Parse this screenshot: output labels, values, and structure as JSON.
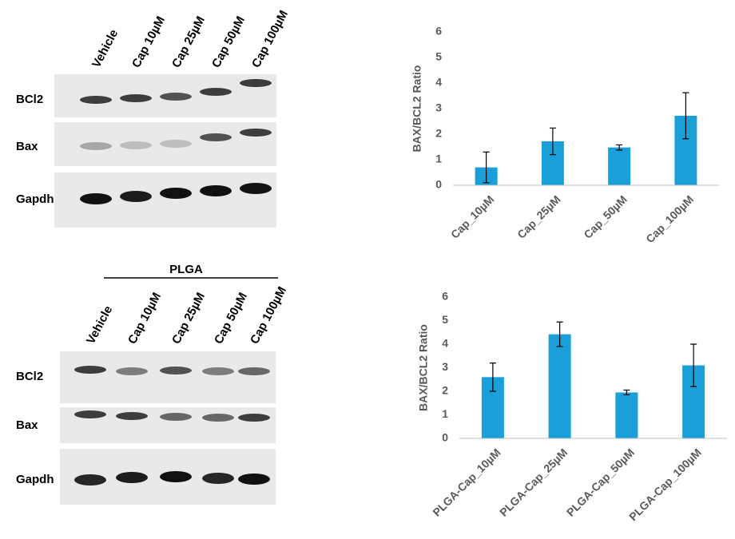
{
  "chart_data": [
    {
      "type": "bar",
      "y_label": "BAX/BCL2 Ratio",
      "categories": [
        "Cap_10µM",
        "Cap_25µM",
        "Cap_50µM",
        "Cap_100µM"
      ],
      "values": [
        0.7,
        1.72,
        1.48,
        2.72
      ],
      "errors": [
        0.6,
        0.52,
        0.1,
        0.9
      ],
      "color": "#1a9fd9",
      "ylim": [
        0,
        6
      ],
      "yticks": [
        0,
        1,
        2,
        3,
        4,
        5,
        6
      ],
      "grid": false
    },
    {
      "type": "bar",
      "y_label": "BAX/BCL2 Ratio",
      "categories": [
        "PLGA-Cap_10µM",
        "PLGA-Cap_25µM",
        "PLGA-Cap_50µM",
        "PLGA-Cap_100µM"
      ],
      "values": [
        2.6,
        4.42,
        1.95,
        3.1
      ],
      "errors": [
        0.6,
        0.52,
        0.1,
        0.9
      ],
      "color": "#1a9fd9",
      "ylim": [
        0,
        6
      ],
      "yticks": [
        0,
        1,
        2,
        3,
        4,
        5,
        6
      ],
      "grid": false
    }
  ],
  "blots": [
    {
      "lanes": [
        "Vehicle",
        "Cap 10µM",
        "Cap 25µM",
        "Cap 50µM",
        "Cap 100µM"
      ],
      "rows": [
        "BCl2",
        "Bax",
        "Gapdh"
      ]
    },
    {
      "header": "PLGA",
      "lanes": [
        "Vehicle",
        "Cap 10µM",
        "Cap 25µM",
        "Cap 50µM",
        "Cap 100µM"
      ],
      "rows": [
        "BCl2",
        "Bax",
        "Gapdh"
      ]
    }
  ]
}
